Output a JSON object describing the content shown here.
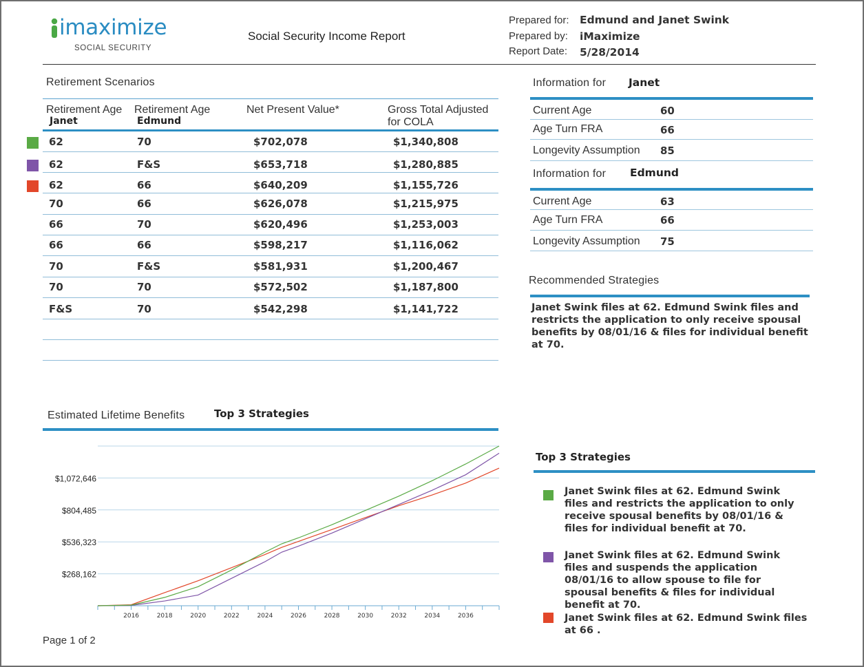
{
  "logo": {
    "main": "imaximize",
    "sub": "SOCIAL SECURITY"
  },
  "report_title": "Social Security Income Report",
  "meta": {
    "prepared_for_label": "Prepared for:",
    "prepared_for": "Edmund and Janet Swink",
    "prepared_by_label": "Prepared by:",
    "prepared_by": "iMaximize",
    "report_date_label": "Report Date:",
    "report_date": "5/28/2014"
  },
  "scenarios": {
    "title": "Retirement Scenarios",
    "col1_label": "Retirement Age",
    "col1_sub": "Janet",
    "col2_label": "Retirement Age",
    "col2_sub": "Edmund",
    "col3_label": "Net Present Value*",
    "col4_label1": "Gross Total Adjusted",
    "col4_label2": "for COLA",
    "rows": [
      {
        "janet": "62",
        "edmund": "70",
        "npv": "$702,078",
        "gross": "$1,340,808"
      },
      {
        "janet": "62",
        "edmund": "F&S",
        "npv": "$653,718",
        "gross": "$1,280,885"
      },
      {
        "janet": "62",
        "edmund": "66",
        "npv": "$640,209",
        "gross": "$1,155,726"
      },
      {
        "janet": "70",
        "edmund": "66",
        "npv": "$626,078",
        "gross": "$1,215,975"
      },
      {
        "janet": "66",
        "edmund": "70",
        "npv": "$620,496",
        "gross": "$1,253,003"
      },
      {
        "janet": "66",
        "edmund": "66",
        "npv": "$598,217",
        "gross": "$1,116,062"
      },
      {
        "janet": "70",
        "edmund": "F&S",
        "npv": "$581,931",
        "gross": "$1,200,467"
      },
      {
        "janet": "70",
        "edmund": "70",
        "npv": "$572,502",
        "gross": "$1,187,800"
      },
      {
        "janet": "F&S",
        "edmund": "70",
        "npv": "$542,298",
        "gross": "$1,141,722"
      }
    ]
  },
  "info_janet": {
    "title": "Information for",
    "name": "Janet",
    "current_age_label": "Current Age",
    "current_age": "60",
    "fra_label": "Age Turn FRA",
    "fra": "66",
    "longevity_label": "Longevity Assumption",
    "longevity": "85"
  },
  "info_edmund": {
    "title": "Information for",
    "name": "Edmund",
    "current_age_label": "Current Age",
    "current_age": "63",
    "fra_label": "Age Turn FRA",
    "fra": "66",
    "longevity_label": "Longevity Assumption",
    "longevity": "75"
  },
  "recommended": {
    "title": "Recommended Strategies",
    "text": "Janet Swink files at 62. Edmund Swink files and restricts the application to only receive spousal benefits by 08/01/16 & files for individual benefit at 70."
  },
  "lifetime": {
    "title": "Estimated Lifetime Benefits",
    "subtitle": "Top 3 Strategies"
  },
  "top3": {
    "title": "Top 3 Strategies",
    "items": [
      {
        "color": "#5aaa45",
        "text": "Janet Swink files at 62. Edmund Swink files and restricts the application to only receive spousal benefits by 08/01/16 & files for individual benefit at 70."
      },
      {
        "color": "#7f55a8",
        "text": "Janet Swink files at 62. Edmund Swink files and suspends the application 08/01/16 to allow spouse to file for spousal benefits & files for individual benefit at 70."
      },
      {
        "color": "#e2472a",
        "text": "Janet Swink files at 62. Edmund Swink files at 66 ."
      }
    ]
  },
  "footer": {
    "page": "Page 1 of 2"
  },
  "colors": {
    "accent": "#2d8fc4",
    "green": "#5aaa45",
    "purple": "#7f55a8",
    "red": "#e2472a"
  },
  "chart_data": {
    "type": "line",
    "title": "",
    "xlabel": "",
    "ylabel": "",
    "x": [
      2014,
      2016,
      2018,
      2020,
      2022,
      2024,
      2025,
      2026,
      2028,
      2030,
      2032,
      2034,
      2036,
      2038
    ],
    "xticks": [
      "2016",
      "2018",
      "2020",
      "2022",
      "2024",
      "2026",
      "2028",
      "2030",
      "2032",
      "2034",
      "2036"
    ],
    "yticks": [
      "$268,162",
      "$536,323",
      "$804,485",
      "$1,072,646"
    ],
    "ytick_values": [
      268162,
      536323,
      804485,
      1072646
    ],
    "ylim": [
      0,
      1340808
    ],
    "xlim": [
      2014,
      2038
    ],
    "grid": true,
    "series": [
      {
        "color": "#5aaa45",
        "values": [
          0,
          5000,
          70000,
          160000,
          300000,
          450000,
          520000,
          570000,
          680000,
          800000,
          920000,
          1050000,
          1190000,
          1340808
        ]
      },
      {
        "color": "#7f55a8",
        "values": [
          0,
          3000,
          40000,
          90000,
          230000,
          370000,
          450000,
          500000,
          610000,
          730000,
          850000,
          970000,
          1100000,
          1280885
        ]
      },
      {
        "color": "#e2472a",
        "values": [
          0,
          8000,
          110000,
          210000,
          320000,
          430000,
          490000,
          540000,
          640000,
          740000,
          840000,
          930000,
          1030000,
          1155726
        ]
      }
    ]
  }
}
